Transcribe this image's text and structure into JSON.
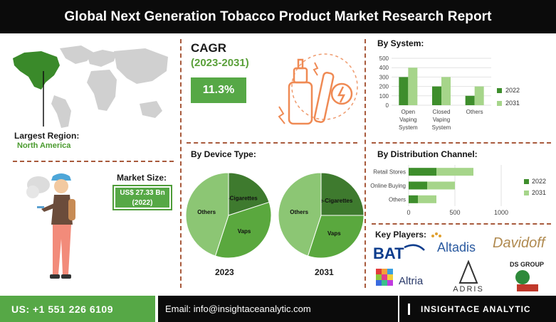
{
  "header": {
    "title": "Global Next Generation Tobacco Product Market Research Report"
  },
  "region": {
    "label": "Largest Region:",
    "value": "North America"
  },
  "cagr": {
    "title": "CAGR",
    "period": "(2023-2031)",
    "value": "11.3%"
  },
  "market_size": {
    "label": "Market Size:",
    "value_line1": "US$ 27.33 Bn",
    "value_line2": "(2022)"
  },
  "sections": {
    "by_system": "By System:",
    "by_device": "By Device Type:",
    "by_channel": "By Distribution Channel:",
    "key_players": "Key Players:"
  },
  "key_players": [
    "BAT",
    "Altadis",
    "Davidoff",
    "Altria",
    "ADRIS",
    "DS GROUP"
  ],
  "footer": {
    "phone": "US: +1 551 226 6109",
    "email": "Email: info@insightaceanalytic.com",
    "brand": "INSIGHTACE ANALYTIC"
  },
  "colors": {
    "dark_green": "#3e8e2c",
    "light_green": "#a6d58a",
    "accent_green": "#56a846",
    "black": "#0b0b0b"
  },
  "chart_data": [
    {
      "type": "bar",
      "title": "By System:",
      "categories": [
        "Open Vaping System",
        "Closed Vaping System",
        "Others"
      ],
      "series": [
        {
          "name": "2022",
          "values": [
            300,
            200,
            100
          ]
        },
        {
          "name": "2031",
          "values": [
            400,
            300,
            200
          ]
        }
      ],
      "ylim": [
        0,
        500
      ],
      "yticks": [
        0,
        100,
        200,
        300,
        400,
        500
      ],
      "grid": true,
      "legend": "right"
    },
    {
      "type": "pie",
      "title": "By Device Type:",
      "year": "2023",
      "slices": [
        {
          "label": "e-Cigarettes",
          "value": 20
        },
        {
          "label": "Vaps",
          "value": 35
        },
        {
          "label": "Others",
          "value": 45
        }
      ]
    },
    {
      "type": "pie",
      "title": "By Device Type:",
      "year": "2031",
      "slices": [
        {
          "label": "e-Cigarettes",
          "value": 25
        },
        {
          "label": "Vaps",
          "value": 30
        },
        {
          "label": "Others",
          "value": 45
        }
      ]
    },
    {
      "type": "bar",
      "orientation": "horizontal",
      "title": "By Distribution Channel:",
      "categories": [
        "Retail Stores",
        "Online Buying",
        "Others"
      ],
      "series": [
        {
          "name": "2022",
          "values": [
            300,
            200,
            100
          ]
        },
        {
          "name": "2031",
          "values": [
            400,
            300,
            200
          ]
        }
      ],
      "xlim": [
        0,
        1000
      ],
      "xticks": [
        0,
        500,
        1000
      ],
      "stacked": true,
      "grid": true,
      "legend": "right"
    }
  ]
}
